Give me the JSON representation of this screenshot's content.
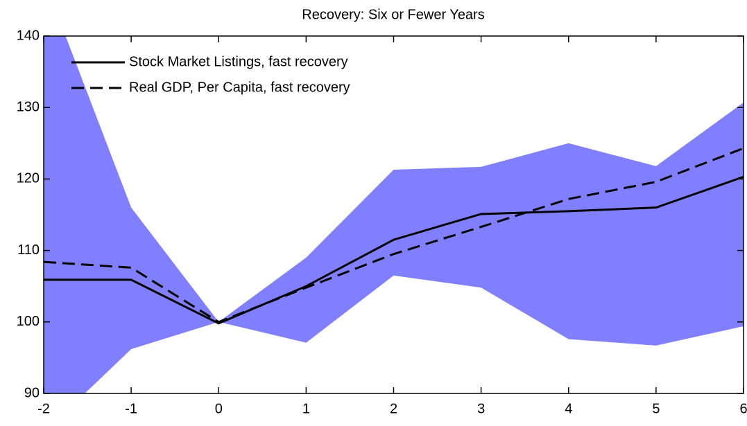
{
  "chart_data": {
    "type": "line",
    "title": "Recovery: Six or Fewer Years",
    "x": [
      -2,
      -1,
      0,
      1,
      2,
      3,
      4,
      5,
      6
    ],
    "xlim": [
      -2,
      6
    ],
    "xticks": [
      -2,
      -1,
      0,
      1,
      2,
      3,
      4,
      5,
      6
    ],
    "ylim": [
      90,
      140
    ],
    "yticks": [
      90,
      100,
      110,
      120,
      130,
      140
    ],
    "band": {
      "color": "#8080ff",
      "upper": [
        148,
        116,
        100,
        109,
        121.3,
        121.7,
        125,
        121.8,
        130.7
      ],
      "lower": [
        84.5,
        96.2,
        100,
        97.1,
        106.5,
        104.8,
        97.6,
        96.7,
        99.4
      ]
    },
    "series": [
      {
        "name": "Stock Market Listings, fast recovery",
        "color": "#000000",
        "dash": "solid",
        "values": [
          105.9,
          105.9,
          99.8,
          105,
          111.5,
          115.1,
          115.5,
          116,
          120.3
        ]
      },
      {
        "name": "Real GDP, Per Capita, fast recovery",
        "color": "#000000",
        "dash": "dashed",
        "values": [
          108.4,
          107.6,
          100,
          104.8,
          109.5,
          113.3,
          117.2,
          119.6,
          124.3
        ]
      }
    ],
    "legend": "top-left"
  }
}
